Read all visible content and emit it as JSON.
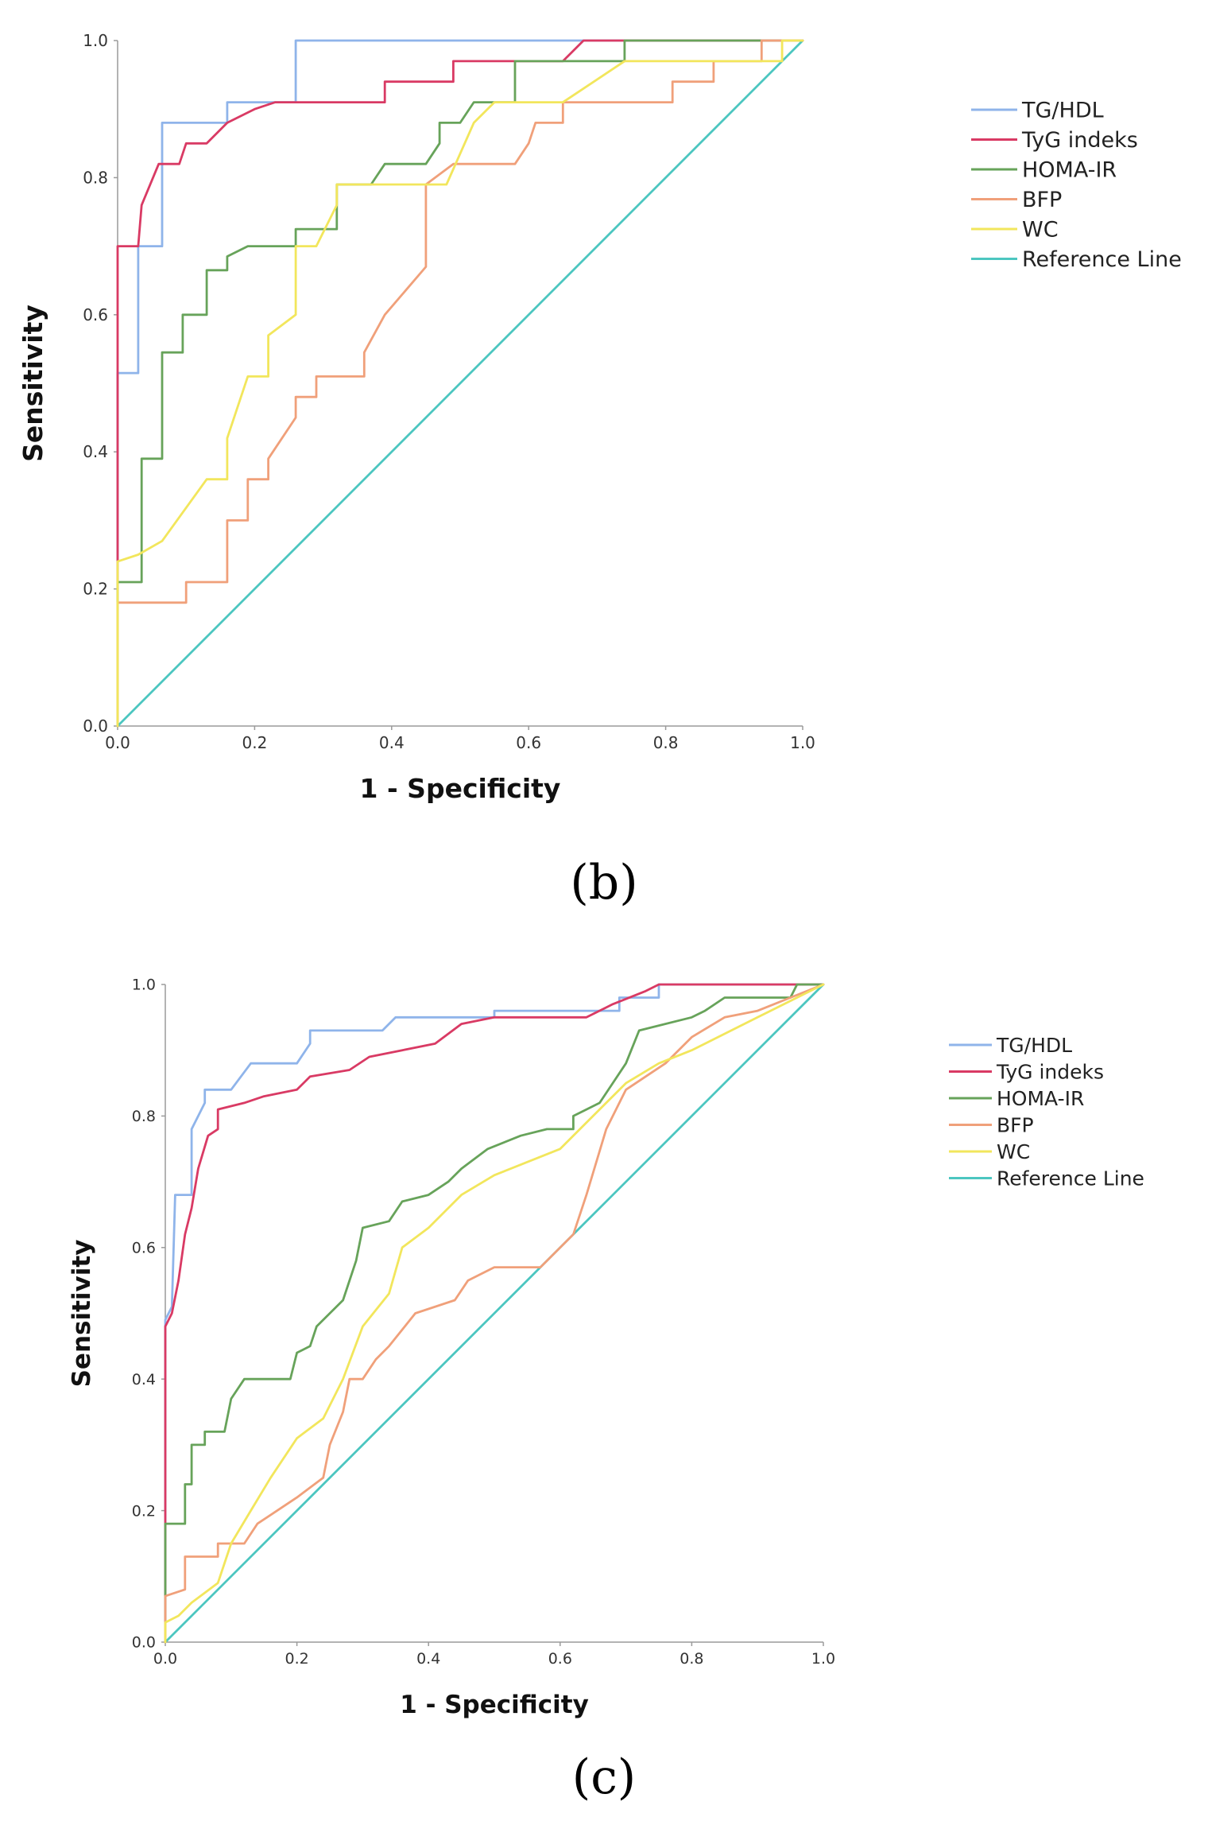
{
  "chart_data": [
    {
      "type": "line",
      "panel_label": "(b)",
      "xlabel": "1 - Specificity",
      "ylabel": "Sensitivity",
      "xlim": [
        0,
        1
      ],
      "ylim": [
        0,
        1
      ],
      "x_ticks": [
        "0.0",
        "0.2",
        "0.4",
        "0.6",
        "0.8",
        "1.0"
      ],
      "y_ticks": [
        "0.0",
        "0.2",
        "0.4",
        "0.6",
        "0.8",
        "1.0"
      ],
      "legend_position": "right",
      "series": [
        {
          "name": "TG/HDL",
          "color": "#8fb4ea",
          "points": [
            [
              0,
              0
            ],
            [
              0,
              0.515
            ],
            [
              0.03,
              0.515
            ],
            [
              0.03,
              0.7
            ],
            [
              0.065,
              0.7
            ],
            [
              0.065,
              0.88
            ],
            [
              0.16,
              0.88
            ],
            [
              0.16,
              0.91
            ],
            [
              0.26,
              0.91
            ],
            [
              0.26,
              1.0
            ],
            [
              1.0,
              1.0
            ]
          ]
        },
        {
          "name": "TyG indeks",
          "color": "#d93a64",
          "points": [
            [
              0,
              0
            ],
            [
              0,
              0.7
            ],
            [
              0.03,
              0.7
            ],
            [
              0.035,
              0.76
            ],
            [
              0.06,
              0.82
            ],
            [
              0.09,
              0.82
            ],
            [
              0.1,
              0.85
            ],
            [
              0.13,
              0.85
            ],
            [
              0.16,
              0.88
            ],
            [
              0.2,
              0.9
            ],
            [
              0.23,
              0.91
            ],
            [
              0.39,
              0.91
            ],
            [
              0.39,
              0.94
            ],
            [
              0.49,
              0.94
            ],
            [
              0.49,
              0.97
            ],
            [
              0.65,
              0.97
            ],
            [
              0.68,
              1.0
            ],
            [
              1.0,
              1.0
            ]
          ]
        },
        {
          "name": "HOMA-IR",
          "color": "#67a35a",
          "points": [
            [
              0,
              0
            ],
            [
              0,
              0.21
            ],
            [
              0.035,
              0.21
            ],
            [
              0.035,
              0.39
            ],
            [
              0.065,
              0.39
            ],
            [
              0.065,
              0.545
            ],
            [
              0.095,
              0.545
            ],
            [
              0.095,
              0.6
            ],
            [
              0.13,
              0.6
            ],
            [
              0.13,
              0.665
            ],
            [
              0.16,
              0.665
            ],
            [
              0.16,
              0.685
            ],
            [
              0.19,
              0.7
            ],
            [
              0.26,
              0.7
            ],
            [
              0.26,
              0.725
            ],
            [
              0.32,
              0.725
            ],
            [
              0.32,
              0.79
            ],
            [
              0.37,
              0.79
            ],
            [
              0.39,
              0.82
            ],
            [
              0.45,
              0.82
            ],
            [
              0.47,
              0.85
            ],
            [
              0.47,
              0.88
            ],
            [
              0.5,
              0.88
            ],
            [
              0.52,
              0.91
            ],
            [
              0.58,
              0.91
            ],
            [
              0.58,
              0.97
            ],
            [
              0.74,
              0.97
            ],
            [
              0.74,
              1.0
            ],
            [
              1.0,
              1.0
            ]
          ]
        },
        {
          "name": "BFP",
          "color": "#f0a07a",
          "points": [
            [
              0,
              0
            ],
            [
              0,
              0.18
            ],
            [
              0.1,
              0.18
            ],
            [
              0.1,
              0.21
            ],
            [
              0.16,
              0.21
            ],
            [
              0.16,
              0.3
            ],
            [
              0.19,
              0.3
            ],
            [
              0.19,
              0.36
            ],
            [
              0.22,
              0.36
            ],
            [
              0.22,
              0.39
            ],
            [
              0.26,
              0.45
            ],
            [
              0.26,
              0.48
            ],
            [
              0.29,
              0.48
            ],
            [
              0.29,
              0.51
            ],
            [
              0.36,
              0.51
            ],
            [
              0.36,
              0.545
            ],
            [
              0.39,
              0.6
            ],
            [
              0.45,
              0.67
            ],
            [
              0.45,
              0.79
            ],
            [
              0.49,
              0.82
            ],
            [
              0.58,
              0.82
            ],
            [
              0.6,
              0.85
            ],
            [
              0.61,
              0.88
            ],
            [
              0.65,
              0.88
            ],
            [
              0.65,
              0.91
            ],
            [
              0.81,
              0.91
            ],
            [
              0.81,
              0.94
            ],
            [
              0.87,
              0.94
            ],
            [
              0.87,
              0.97
            ],
            [
              0.94,
              0.97
            ],
            [
              0.94,
              1.0
            ],
            [
              1.0,
              1.0
            ]
          ]
        },
        {
          "name": "WC",
          "color": "#f2e65c",
          "points": [
            [
              0,
              0
            ],
            [
              0,
              0.24
            ],
            [
              0.03,
              0.25
            ],
            [
              0.065,
              0.27
            ],
            [
              0.13,
              0.36
            ],
            [
              0.16,
              0.36
            ],
            [
              0.16,
              0.42
            ],
            [
              0.19,
              0.51
            ],
            [
              0.22,
              0.51
            ],
            [
              0.22,
              0.57
            ],
            [
              0.26,
              0.6
            ],
            [
              0.26,
              0.7
            ],
            [
              0.29,
              0.7
            ],
            [
              0.32,
              0.76
            ],
            [
              0.32,
              0.79
            ],
            [
              0.48,
              0.79
            ],
            [
              0.52,
              0.88
            ],
            [
              0.55,
              0.91
            ],
            [
              0.65,
              0.91
            ],
            [
              0.74,
              0.97
            ],
            [
              0.97,
              0.97
            ],
            [
              0.97,
              1.0
            ],
            [
              1.0,
              1.0
            ]
          ]
        },
        {
          "name": "Reference Line",
          "color": "#4cc6c0",
          "points": [
            [
              0,
              0
            ],
            [
              1,
              1
            ]
          ]
        }
      ]
    },
    {
      "type": "line",
      "panel_label": "(c)",
      "xlabel": "1 - Specificity",
      "ylabel": "Sensitivity",
      "xlim": [
        0,
        1
      ],
      "ylim": [
        0,
        1
      ],
      "x_ticks": [
        "0.0",
        "0.2",
        "0.4",
        "0.6",
        "0.8",
        "1.0"
      ],
      "y_ticks": [
        "0.0",
        "0.2",
        "0.4",
        "0.6",
        "0.8",
        "1.0"
      ],
      "legend_position": "right",
      "series": [
        {
          "name": "TG/HDL",
          "color": "#8fb4ea",
          "points": [
            [
              0,
              0
            ],
            [
              0,
              0.49
            ],
            [
              0.01,
              0.51
            ],
            [
              0.015,
              0.68
            ],
            [
              0.04,
              0.68
            ],
            [
              0.04,
              0.78
            ],
            [
              0.06,
              0.82
            ],
            [
              0.06,
              0.84
            ],
            [
              0.1,
              0.84
            ],
            [
              0.13,
              0.88
            ],
            [
              0.2,
              0.88
            ],
            [
              0.22,
              0.91
            ],
            [
              0.22,
              0.93
            ],
            [
              0.33,
              0.93
            ],
            [
              0.35,
              0.95
            ],
            [
              0.5,
              0.95
            ],
            [
              0.5,
              0.96
            ],
            [
              0.69,
              0.96
            ],
            [
              0.69,
              0.98
            ],
            [
              0.75,
              0.98
            ],
            [
              0.75,
              1.0
            ],
            [
              1.0,
              1.0
            ]
          ]
        },
        {
          "name": "TyG indeks",
          "color": "#d93a64",
          "points": [
            [
              0,
              0
            ],
            [
              0,
              0.48
            ],
            [
              0.01,
              0.5
            ],
            [
              0.02,
              0.55
            ],
            [
              0.03,
              0.62
            ],
            [
              0.04,
              0.66
            ],
            [
              0.05,
              0.72
            ],
            [
              0.065,
              0.77
            ],
            [
              0.08,
              0.78
            ],
            [
              0.08,
              0.81
            ],
            [
              0.12,
              0.82
            ],
            [
              0.15,
              0.83
            ],
            [
              0.2,
              0.84
            ],
            [
              0.22,
              0.86
            ],
            [
              0.28,
              0.87
            ],
            [
              0.31,
              0.89
            ],
            [
              0.36,
              0.9
            ],
            [
              0.41,
              0.91
            ],
            [
              0.45,
              0.94
            ],
            [
              0.5,
              0.95
            ],
            [
              0.64,
              0.95
            ],
            [
              0.68,
              0.97
            ],
            [
              0.73,
              0.99
            ],
            [
              0.75,
              1.0
            ],
            [
              1.0,
              1.0
            ]
          ]
        },
        {
          "name": "HOMA-IR",
          "color": "#67a35a",
          "points": [
            [
              0,
              0
            ],
            [
              0,
              0.18
            ],
            [
              0.03,
              0.18
            ],
            [
              0.03,
              0.24
            ],
            [
              0.04,
              0.24
            ],
            [
              0.04,
              0.3
            ],
            [
              0.06,
              0.3
            ],
            [
              0.06,
              0.32
            ],
            [
              0.09,
              0.32
            ],
            [
              0.1,
              0.37
            ],
            [
              0.12,
              0.4
            ],
            [
              0.19,
              0.4
            ],
            [
              0.2,
              0.44
            ],
            [
              0.22,
              0.45
            ],
            [
              0.23,
              0.48
            ],
            [
              0.25,
              0.5
            ],
            [
              0.27,
              0.52
            ],
            [
              0.29,
              0.58
            ],
            [
              0.3,
              0.63
            ],
            [
              0.34,
              0.64
            ],
            [
              0.36,
              0.67
            ],
            [
              0.4,
              0.68
            ],
            [
              0.43,
              0.7
            ],
            [
              0.45,
              0.72
            ],
            [
              0.49,
              0.75
            ],
            [
              0.54,
              0.77
            ],
            [
              0.58,
              0.78
            ],
            [
              0.62,
              0.78
            ],
            [
              0.62,
              0.8
            ],
            [
              0.66,
              0.82
            ],
            [
              0.68,
              0.85
            ],
            [
              0.7,
              0.88
            ],
            [
              0.72,
              0.93
            ],
            [
              0.8,
              0.95
            ],
            [
              0.82,
              0.96
            ],
            [
              0.85,
              0.98
            ],
            [
              0.95,
              0.98
            ],
            [
              0.96,
              1.0
            ],
            [
              1.0,
              1.0
            ]
          ]
        },
        {
          "name": "BFP",
          "color": "#f0a07a",
          "points": [
            [
              0,
              0
            ],
            [
              0,
              0.07
            ],
            [
              0.03,
              0.08
            ],
            [
              0.03,
              0.13
            ],
            [
              0.08,
              0.13
            ],
            [
              0.08,
              0.15
            ],
            [
              0.12,
              0.15
            ],
            [
              0.14,
              0.18
            ],
            [
              0.17,
              0.2
            ],
            [
              0.2,
              0.22
            ],
            [
              0.24,
              0.25
            ],
            [
              0.25,
              0.3
            ],
            [
              0.27,
              0.35
            ],
            [
              0.28,
              0.4
            ],
            [
              0.3,
              0.4
            ],
            [
              0.32,
              0.43
            ],
            [
              0.34,
              0.45
            ],
            [
              0.38,
              0.5
            ],
            [
              0.44,
              0.52
            ],
            [
              0.46,
              0.55
            ],
            [
              0.5,
              0.57
            ],
            [
              0.57,
              0.57
            ],
            [
              0.62,
              0.62
            ],
            [
              0.64,
              0.68
            ],
            [
              0.67,
              0.78
            ],
            [
              0.7,
              0.84
            ],
            [
              0.76,
              0.88
            ],
            [
              0.8,
              0.92
            ],
            [
              0.85,
              0.95
            ],
            [
              0.9,
              0.96
            ],
            [
              0.95,
              0.98
            ],
            [
              1.0,
              1.0
            ]
          ]
        },
        {
          "name": "WC",
          "color": "#f2e65c",
          "points": [
            [
              0,
              0
            ],
            [
              0,
              0.03
            ],
            [
              0.02,
              0.04
            ],
            [
              0.04,
              0.06
            ],
            [
              0.08,
              0.09
            ],
            [
              0.1,
              0.15
            ],
            [
              0.13,
              0.2
            ],
            [
              0.16,
              0.25
            ],
            [
              0.2,
              0.31
            ],
            [
              0.24,
              0.34
            ],
            [
              0.27,
              0.4
            ],
            [
              0.3,
              0.48
            ],
            [
              0.34,
              0.53
            ],
            [
              0.36,
              0.6
            ],
            [
              0.4,
              0.63
            ],
            [
              0.45,
              0.68
            ],
            [
              0.5,
              0.71
            ],
            [
              0.6,
              0.75
            ],
            [
              0.65,
              0.8
            ],
            [
              0.7,
              0.85
            ],
            [
              0.75,
              0.88
            ],
            [
              0.8,
              0.9
            ],
            [
              0.9,
              0.95
            ],
            [
              1.0,
              1.0
            ]
          ]
        },
        {
          "name": "Reference Line",
          "color": "#4cc6c0",
          "points": [
            [
              0,
              0
            ],
            [
              1,
              1
            ]
          ]
        }
      ]
    }
  ]
}
